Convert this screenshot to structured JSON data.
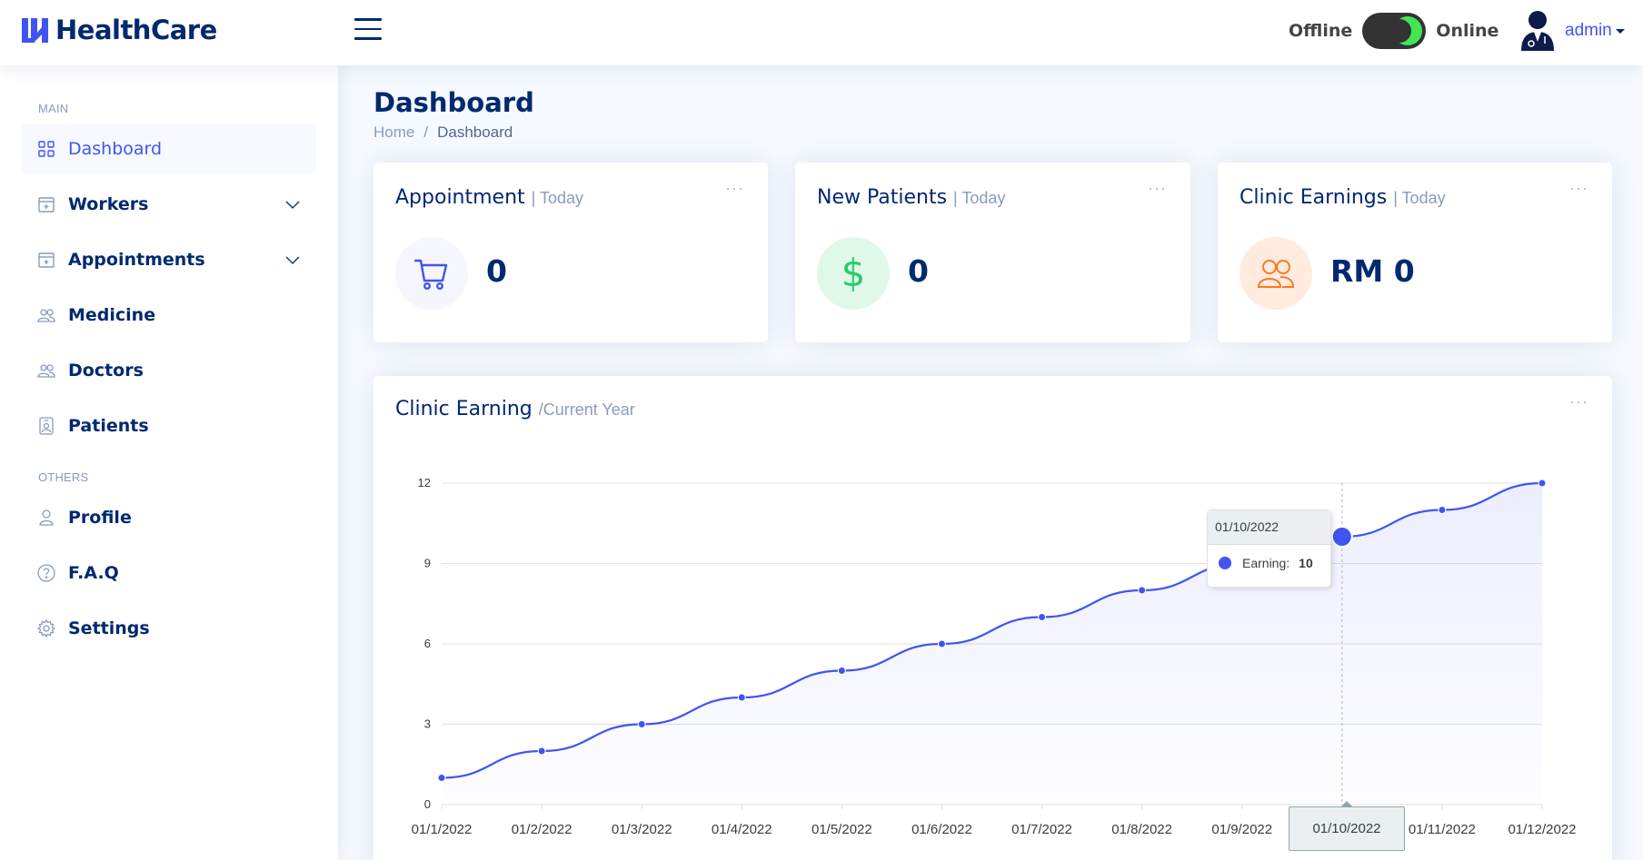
{
  "app": {
    "name": "HealthCare"
  },
  "header": {
    "status_offline": "Offline",
    "status_online": "Online",
    "user_name": "admin"
  },
  "sidebar": {
    "main_heading": "MAIN",
    "others_heading": "OTHERS",
    "items": [
      {
        "label": "Dashboard",
        "icon": "grid-icon",
        "active": true
      },
      {
        "label": "Workers",
        "icon": "calendar-plus-icon",
        "expandable": true
      },
      {
        "label": "Appointments",
        "icon": "calendar-plus-icon",
        "expandable": true
      },
      {
        "label": "Medicine",
        "icon": "people-icon"
      },
      {
        "label": "Doctors",
        "icon": "people-icon"
      },
      {
        "label": "Patients",
        "icon": "person-badge-icon"
      }
    ],
    "others": [
      {
        "label": "Profile",
        "icon": "person-icon"
      },
      {
        "label": "F.A.Q",
        "icon": "question-circle-icon"
      },
      {
        "label": "Settings",
        "icon": "gear-icon"
      }
    ]
  },
  "page": {
    "title": "Dashboard",
    "breadcrumb": [
      "Home",
      "Dashboard"
    ]
  },
  "cards": [
    {
      "title": "Appointment",
      "sub": "| Today",
      "value": "0",
      "icon": "cart-icon",
      "icon_color": "#4154f1",
      "icon_bg": "#f6f6fe"
    },
    {
      "title": "New Patients",
      "sub": "| Today",
      "value": "0",
      "icon": "dollar-icon",
      "icon_color": "#2eca6a",
      "icon_bg": "#e0f8e9"
    },
    {
      "title": "Clinic Earnings",
      "sub": "| Today",
      "value": "RM 0",
      "icon": "people-icon",
      "icon_color": "#ff771d",
      "icon_bg": "#ffecdf"
    }
  ],
  "chart_card": {
    "title": "Clinic Earning",
    "sub": "/Current Year",
    "menu_dots": "···"
  },
  "chart_data": {
    "type": "area",
    "x": [
      "01/1/2022",
      "01/2/2022",
      "01/3/2022",
      "01/4/2022",
      "01/5/2022",
      "01/6/2022",
      "01/7/2022",
      "01/8/2022",
      "01/9/2022",
      "01/10/2022",
      "01/11/2022",
      "01/12/2022"
    ],
    "series": [
      {
        "name": "Earning",
        "values": [
          1,
          2,
          3,
          4,
          5,
          6,
          7,
          8,
          9,
          10,
          11,
          12
        ]
      }
    ],
    "yticks": [
      "0",
      "3",
      "6",
      "9",
      "12"
    ],
    "ylim": [
      0,
      12
    ],
    "grid": true,
    "color": "#4154f1",
    "tooltip": {
      "x": "01/10/2022",
      "label": "Earning:",
      "value": "10"
    }
  }
}
